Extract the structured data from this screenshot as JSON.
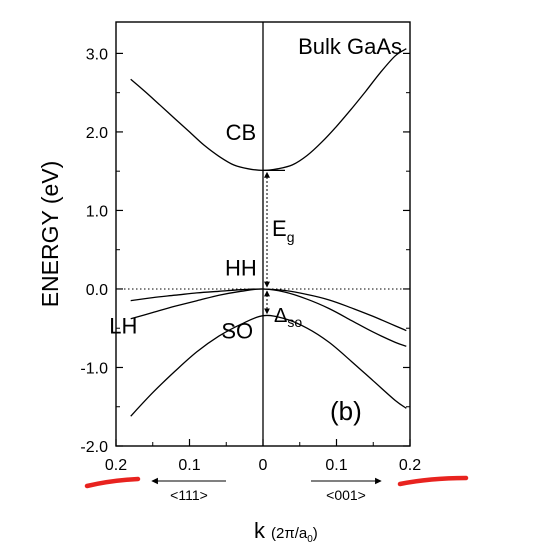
{
  "chart_data": {
    "type": "line",
    "title": "Bulk GaAs",
    "panel_label": "(b)",
    "ylabel": "ENERGY (eV)",
    "xlabel": {
      "main": "k",
      "unit_open": "(2",
      "pi": "π",
      "unit_slash": "/a",
      "unit_sub": "0",
      "unit_close": ")"
    },
    "xlim": [
      -0.2,
      0.2
    ],
    "ylim": [
      -2.0,
      3.4
    ],
    "x_ticks": [
      -0.2,
      -0.1,
      0,
      0.1,
      0.2
    ],
    "x_tick_labels": [
      "0.2",
      "0.1",
      "0",
      "0.1",
      "0.2"
    ],
    "y_ticks": [
      3.0,
      2.0,
      1.0,
      0.0,
      -1.0,
      -2.0
    ],
    "y_tick_labels": [
      "3.0",
      "2.0",
      "1.0",
      "0.0",
      "-1.0",
      "-2.0"
    ],
    "direction_labels": {
      "left": "<111>",
      "right": "<001>"
    },
    "reference_line_y": 0.0,
    "band_gap": {
      "label": "E",
      "sub": "g",
      "from": 0.0,
      "to": 1.51
    },
    "spin_orbit": {
      "label": "Δ",
      "sub": "so",
      "from": 0.0,
      "to": -0.34
    },
    "series": [
      {
        "name": "CB",
        "x": [
          -0.18,
          -0.16,
          -0.14,
          -0.12,
          -0.1,
          -0.08,
          -0.06,
          -0.04,
          -0.02,
          0,
          0.02,
          0.04,
          0.06,
          0.08,
          0.1,
          0.12,
          0.14,
          0.16,
          0.18,
          0.195
        ],
        "y": [
          2.67,
          2.51,
          2.34,
          2.17,
          2.0,
          1.83,
          1.69,
          1.58,
          1.53,
          1.51,
          1.53,
          1.58,
          1.7,
          1.87,
          2.07,
          2.29,
          2.52,
          2.76,
          2.97,
          3.06
        ]
      },
      {
        "name": "HH",
        "x": [
          -0.18,
          -0.15,
          -0.12,
          -0.09,
          -0.06,
          -0.03,
          0,
          0.03,
          0.06,
          0.09,
          0.12,
          0.15,
          0.18,
          0.195
        ],
        "y": [
          -0.15,
          -0.11,
          -0.08,
          -0.05,
          -0.03,
          -0.01,
          0,
          -0.02,
          -0.07,
          -0.14,
          -0.24,
          -0.35,
          -0.47,
          -0.53
        ]
      },
      {
        "name": "LH",
        "x": [
          -0.18,
          -0.15,
          -0.12,
          -0.09,
          -0.06,
          -0.03,
          0,
          0.03,
          0.06,
          0.09,
          0.12,
          0.15,
          0.18,
          0.195
        ],
        "y": [
          -0.38,
          -0.3,
          -0.22,
          -0.15,
          -0.08,
          -0.03,
          0,
          -0.04,
          -0.13,
          -0.25,
          -0.4,
          -0.55,
          -0.68,
          -0.73
        ]
      },
      {
        "name": "SO",
        "x": [
          -0.18,
          -0.15,
          -0.12,
          -0.09,
          -0.06,
          -0.03,
          0,
          0.03,
          0.06,
          0.09,
          0.12,
          0.15,
          0.18,
          0.195
        ],
        "y": [
          -1.62,
          -1.32,
          -1.05,
          -0.8,
          -0.6,
          -0.45,
          -0.34,
          -0.38,
          -0.5,
          -0.68,
          -0.92,
          -1.17,
          -1.42,
          -1.52
        ]
      }
    ],
    "band_labels": [
      {
        "text": "CB",
        "x": -0.03,
        "y": 1.9
      },
      {
        "text": "HH",
        "x": -0.03,
        "y": 0.17
      },
      {
        "text": "LH",
        "x": -0.19,
        "y": -0.57
      },
      {
        "text": "SO",
        "x": -0.035,
        "y": -0.63
      }
    ],
    "grid": false,
    "legend": "none",
    "annotation_colors": {
      "marks": "#e8231f",
      "ink": "#000000"
    }
  }
}
